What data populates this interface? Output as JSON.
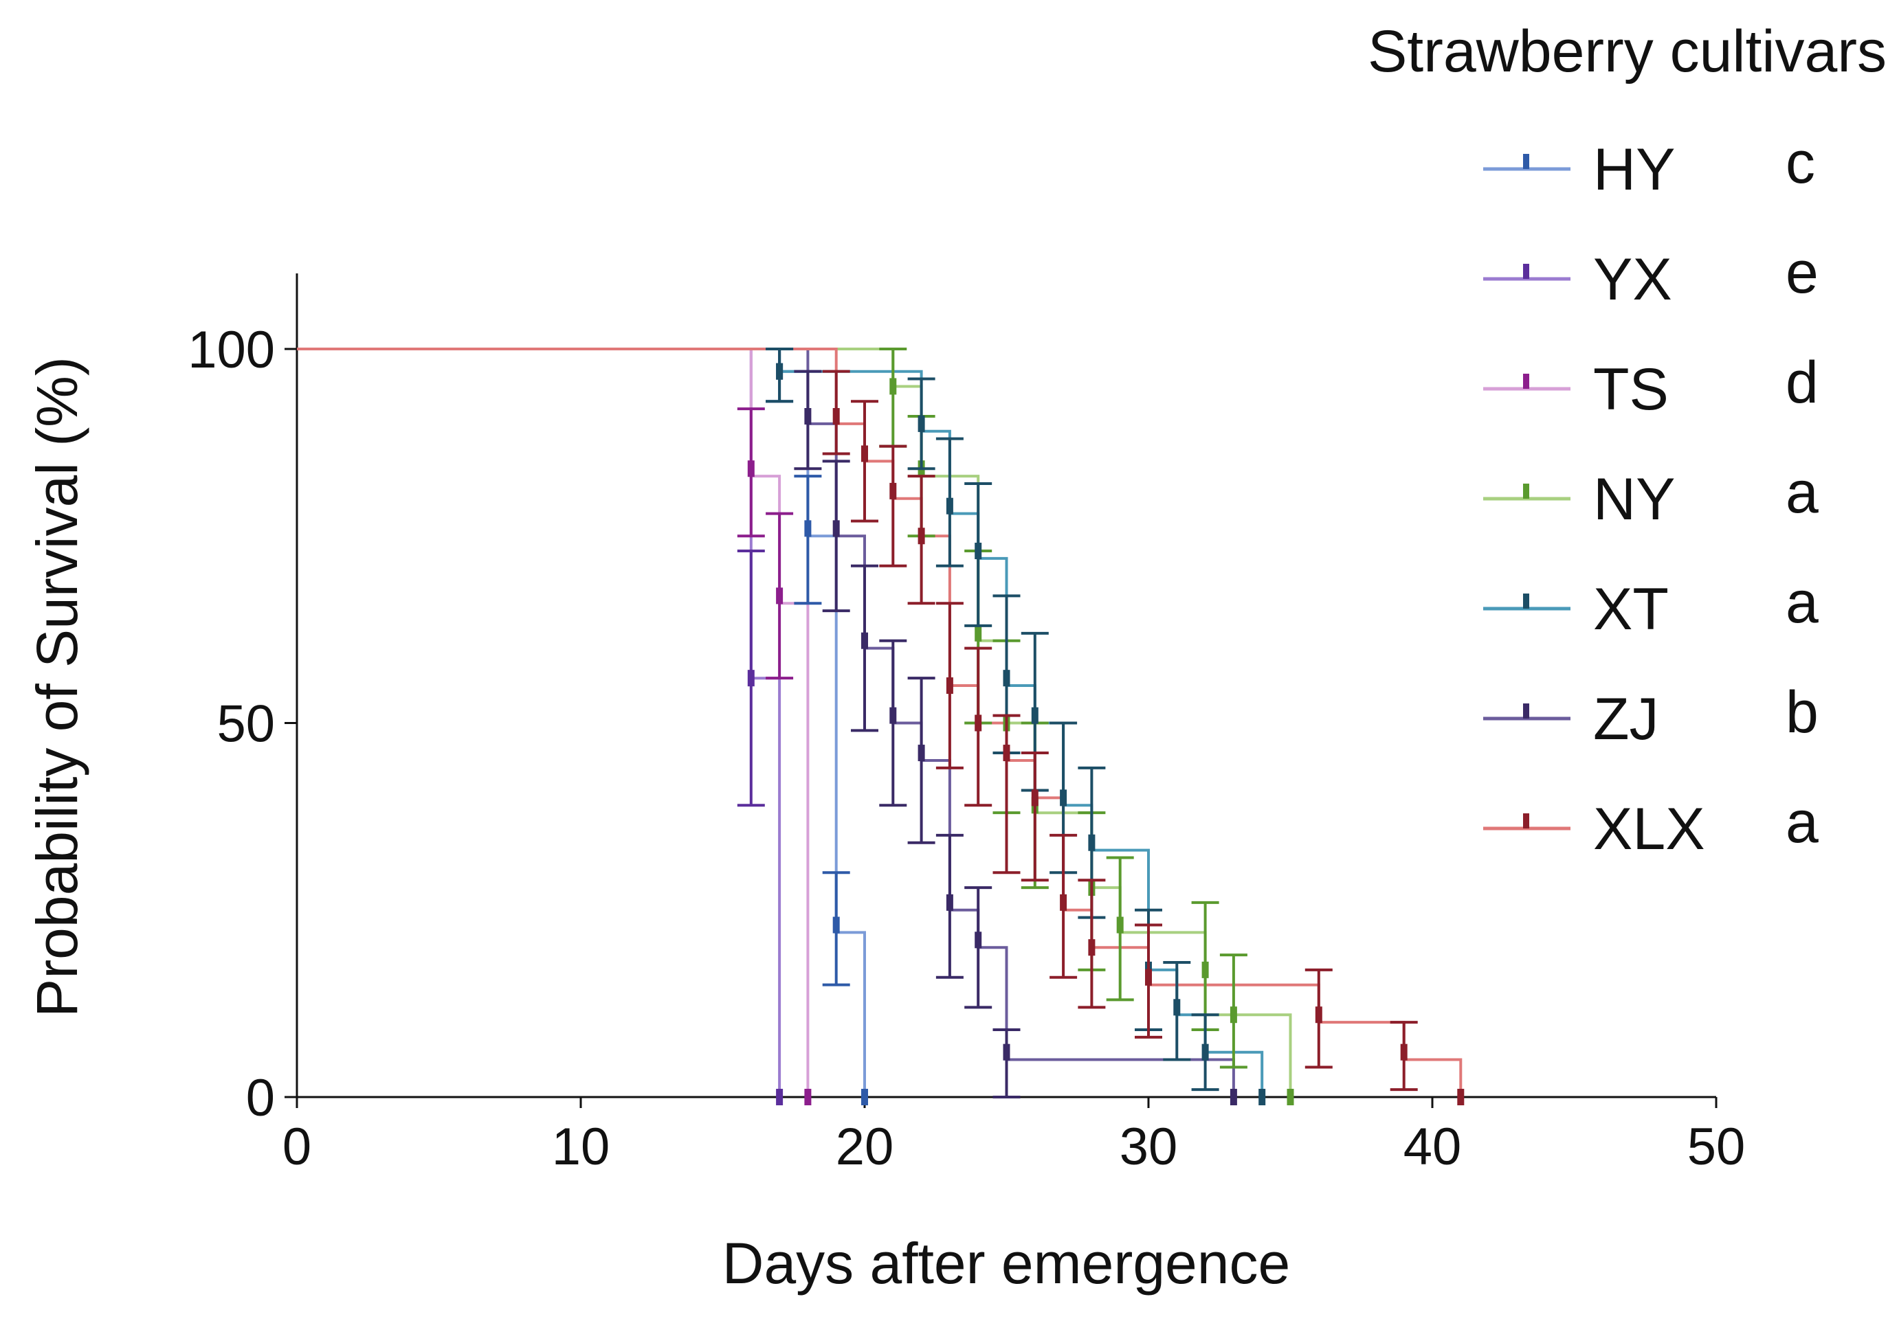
{
  "chart_data": {
    "type": "kaplan-meier",
    "xlabel": "Days after emergence",
    "ylabel": "Probability of Survival (%)",
    "xlim": [
      0,
      50
    ],
    "ylim": [
      0,
      110
    ],
    "xticks": [
      0,
      10,
      20,
      30,
      40,
      50
    ],
    "yticks": [
      0,
      50,
      100
    ],
    "grid": false,
    "legend": {
      "title": "Strawberry cultivars",
      "placement": "top-right"
    },
    "series": [
      {
        "name": "HY",
        "letter": "c",
        "line_color": "#7B9BD8",
        "bar_color": "#2E5AA8",
        "steps": [
          [
            0,
            100
          ],
          [
            17,
            100
          ],
          [
            17,
            97
          ],
          [
            18,
            97
          ],
          [
            18,
            75
          ],
          [
            19,
            75
          ],
          [
            19,
            22
          ],
          [
            20,
            22
          ],
          [
            20,
            0
          ]
        ],
        "errors": [
          [
            17,
            97,
            100,
            93
          ],
          [
            18,
            76,
            83,
            66
          ],
          [
            19,
            23,
            30,
            15
          ],
          [
            20,
            0,
            0,
            0
          ]
        ]
      },
      {
        "name": "YX",
        "letter": "e",
        "line_color": "#9B7BD0",
        "bar_color": "#5B2E9C",
        "steps": [
          [
            0,
            100
          ],
          [
            16,
            100
          ],
          [
            16,
            56
          ],
          [
            17,
            56
          ],
          [
            17,
            0
          ]
        ],
        "errors": [
          [
            16,
            56,
            73,
            39
          ],
          [
            17,
            0,
            0,
            0
          ]
        ]
      },
      {
        "name": "TS",
        "letter": "d",
        "line_color": "#D7A0D7",
        "bar_color": "#8C1E8C",
        "steps": [
          [
            0,
            100
          ],
          [
            16,
            100
          ],
          [
            16,
            83
          ],
          [
            17,
            83
          ],
          [
            17,
            66
          ],
          [
            18,
            66
          ],
          [
            18,
            0
          ]
        ],
        "errors": [
          [
            16,
            84,
            92,
            75
          ],
          [
            17,
            67,
            78,
            56
          ],
          [
            18,
            0,
            0,
            0
          ]
        ]
      },
      {
        "name": "NY",
        "letter": "a",
        "line_color": "#A8D080",
        "bar_color": "#5A9A2E",
        "steps": [
          [
            0,
            100
          ],
          [
            21,
            100
          ],
          [
            21,
            95
          ],
          [
            22,
            95
          ],
          [
            22,
            83
          ],
          [
            24,
            83
          ],
          [
            24,
            61
          ],
          [
            25,
            61
          ],
          [
            25,
            50
          ],
          [
            26,
            50
          ],
          [
            26,
            38
          ],
          [
            28,
            38
          ],
          [
            28,
            28
          ],
          [
            29,
            28
          ],
          [
            29,
            22
          ],
          [
            32,
            22
          ],
          [
            32,
            11
          ],
          [
            33,
            11
          ],
          [
            33,
            11
          ],
          [
            35,
            11
          ],
          [
            35,
            0
          ]
        ],
        "errors": [
          [
            21,
            95,
            100,
            87
          ],
          [
            22,
            84,
            91,
            75
          ],
          [
            24,
            62,
            73,
            50
          ],
          [
            25,
            50,
            61,
            38
          ],
          [
            26,
            39,
            50,
            28
          ],
          [
            28,
            28,
            38,
            17
          ],
          [
            29,
            23,
            32,
            13
          ],
          [
            32,
            17,
            26,
            9
          ],
          [
            33,
            11,
            19,
            4
          ],
          [
            35,
            0,
            0,
            0
          ]
        ]
      },
      {
        "name": "XT",
        "letter": "a",
        "line_color": "#4A9AB8",
        "bar_color": "#1C4E66",
        "steps": [
          [
            0,
            100
          ],
          [
            17,
            100
          ],
          [
            17,
            97
          ],
          [
            22,
            97
          ],
          [
            22,
            89
          ],
          [
            23,
            89
          ],
          [
            23,
            78
          ],
          [
            24,
            78
          ],
          [
            24,
            72
          ],
          [
            25,
            72
          ],
          [
            25,
            55
          ],
          [
            26,
            55
          ],
          [
            26,
            50
          ],
          [
            27,
            50
          ],
          [
            27,
            39
          ],
          [
            28,
            39
          ],
          [
            28,
            33
          ],
          [
            30,
            33
          ],
          [
            30,
            17
          ],
          [
            31,
            17
          ],
          [
            31,
            11
          ],
          [
            32,
            11
          ],
          [
            32,
            6
          ],
          [
            34,
            6
          ],
          [
            34,
            0
          ]
        ],
        "errors": [
          [
            17,
            97,
            100,
            93
          ],
          [
            22,
            90,
            96,
            84
          ],
          [
            23,
            79,
            88,
            71
          ],
          [
            24,
            73,
            82,
            63
          ],
          [
            25,
            56,
            67,
            46
          ],
          [
            26,
            51,
            62,
            41
          ],
          [
            27,
            40,
            50,
            30
          ],
          [
            28,
            34,
            44,
            24
          ],
          [
            30,
            17,
            25,
            9
          ],
          [
            31,
            12,
            18,
            5
          ],
          [
            32,
            6,
            11,
            1
          ],
          [
            34,
            0,
            0,
            0
          ]
        ]
      },
      {
        "name": "ZJ",
        "letter": "b",
        "line_color": "#6B5C9C",
        "bar_color": "#3A2A66",
        "steps": [
          [
            0,
            100
          ],
          [
            18,
            100
          ],
          [
            18,
            90
          ],
          [
            19,
            90
          ],
          [
            19,
            75
          ],
          [
            20,
            75
          ],
          [
            20,
            60
          ],
          [
            21,
            60
          ],
          [
            21,
            50
          ],
          [
            22,
            50
          ],
          [
            22,
            45
          ],
          [
            23,
            45
          ],
          [
            23,
            25
          ],
          [
            24,
            25
          ],
          [
            24,
            20
          ],
          [
            25,
            20
          ],
          [
            25,
            5
          ],
          [
            33,
            5
          ],
          [
            33,
            0
          ]
        ],
        "errors": [
          [
            18,
            91,
            97,
            84
          ],
          [
            19,
            76,
            85,
            65
          ],
          [
            20,
            61,
            71,
            49
          ],
          [
            21,
            51,
            61,
            39
          ],
          [
            22,
            46,
            56,
            34
          ],
          [
            23,
            26,
            35,
            16
          ],
          [
            24,
            21,
            28,
            12
          ],
          [
            25,
            6,
            9,
            0
          ],
          [
            33,
            0,
            0,
            0
          ]
        ]
      },
      {
        "name": "XLX",
        "letter": "a",
        "line_color": "#E07878",
        "bar_color": "#8C1E2A",
        "steps": [
          [
            0,
            100
          ],
          [
            19,
            100
          ],
          [
            19,
            90
          ],
          [
            20,
            90
          ],
          [
            20,
            85
          ],
          [
            21,
            85
          ],
          [
            21,
            80
          ],
          [
            22,
            80
          ],
          [
            22,
            75
          ],
          [
            23,
            75
          ],
          [
            23,
            55
          ],
          [
            24,
            55
          ],
          [
            24,
            50
          ],
          [
            25,
            50
          ],
          [
            25,
            45
          ],
          [
            26,
            45
          ],
          [
            26,
            40
          ],
          [
            27,
            40
          ],
          [
            27,
            25
          ],
          [
            28,
            25
          ],
          [
            28,
            20
          ],
          [
            30,
            20
          ],
          [
            30,
            15
          ],
          [
            36,
            15
          ],
          [
            36,
            10
          ],
          [
            39,
            10
          ],
          [
            39,
            5
          ],
          [
            41,
            5
          ],
          [
            41,
            0
          ]
        ],
        "errors": [
          [
            19,
            91,
            97,
            86
          ],
          [
            20,
            86,
            93,
            77
          ],
          [
            21,
            81,
            87,
            71
          ],
          [
            22,
            75,
            83,
            66
          ],
          [
            23,
            55,
            66,
            44
          ],
          [
            24,
            50,
            60,
            39
          ],
          [
            25,
            46,
            51,
            30
          ],
          [
            26,
            40,
            46,
            29
          ],
          [
            27,
            26,
            35,
            16
          ],
          [
            28,
            20,
            29,
            12
          ],
          [
            30,
            16,
            23,
            8
          ],
          [
            36,
            11,
            17,
            4
          ],
          [
            39,
            6,
            10,
            1
          ],
          [
            41,
            0,
            0,
            0
          ]
        ]
      }
    ]
  }
}
